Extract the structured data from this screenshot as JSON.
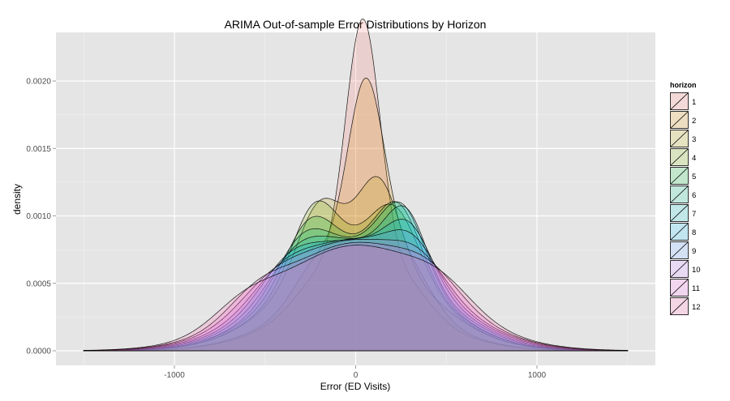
{
  "chart_data": {
    "type": "area",
    "subtype": "density",
    "title": "ARIMA Out-of-sample Error Distributions by Horizon",
    "xlabel": "Error (ED Visits)",
    "ylabel": "density",
    "xlim": [
      -1500,
      1500
    ],
    "ylim": [
      0,
      0.0022
    ],
    "x_ticks": [
      -1000,
      0,
      1000
    ],
    "x_tick_labels": [
      "-1000",
      "0",
      "1000"
    ],
    "y_ticks": [
      0,
      0.0005,
      0.001,
      0.0015,
      0.002
    ],
    "y_tick_labels": [
      "0.0000",
      "0.0005",
      "0.0010",
      "0.0015",
      "0.0020"
    ],
    "grid": true,
    "background": "#e5e5e5",
    "fill_opacity": 0.2,
    "legend": {
      "title": "horizon",
      "position": "right",
      "labels": [
        "1",
        "2",
        "3",
        "4",
        "5",
        "6",
        "7",
        "8",
        "9",
        "10",
        "11",
        "12"
      ]
    },
    "series": [
      {
        "name": "1",
        "color": "#F8766D",
        "components": [
          {
            "mu": 40,
            "sd": 95,
            "w": 0.46
          },
          {
            "mu": -180,
            "sd": 140,
            "w": 0.08
          },
          {
            "mu": 260,
            "sd": 140,
            "w": 0.08
          },
          {
            "mu": 0,
            "sd": 380,
            "w": 0.38
          }
        ]
      },
      {
        "name": "2",
        "color": "#DE8C00",
        "components": [
          {
            "mu": 55,
            "sd": 100,
            "w": 0.36
          },
          {
            "mu": -200,
            "sd": 130,
            "w": 0.1
          },
          {
            "mu": 270,
            "sd": 140,
            "w": 0.12
          },
          {
            "mu": 0,
            "sd": 380,
            "w": 0.42
          }
        ]
      },
      {
        "name": "3",
        "color": "#B79F00",
        "components": [
          {
            "mu": 130,
            "sd": 110,
            "w": 0.16
          },
          {
            "mu": -200,
            "sd": 120,
            "w": 0.14
          },
          {
            "mu": 0,
            "sd": 380,
            "w": 0.7
          }
        ]
      },
      {
        "name": "4",
        "color": "#7CAE00",
        "components": [
          {
            "mu": -230,
            "sd": 120,
            "w": 0.14
          },
          {
            "mu": 220,
            "sd": 130,
            "w": 0.14
          },
          {
            "mu": 0,
            "sd": 380,
            "w": 0.72
          }
        ]
      },
      {
        "name": "5",
        "color": "#00BA38",
        "components": [
          {
            "mu": -260,
            "sd": 130,
            "w": 0.12
          },
          {
            "mu": 240,
            "sd": 120,
            "w": 0.14
          },
          {
            "mu": 0,
            "sd": 390,
            "w": 0.74
          }
        ]
      },
      {
        "name": "6",
        "color": "#00C08B",
        "components": [
          {
            "mu": -300,
            "sd": 140,
            "w": 0.1
          },
          {
            "mu": 260,
            "sd": 120,
            "w": 0.14
          },
          {
            "mu": 0,
            "sd": 390,
            "w": 0.76
          }
        ]
      },
      {
        "name": "7",
        "color": "#00BFC4",
        "components": [
          {
            "mu": -330,
            "sd": 150,
            "w": 0.08
          },
          {
            "mu": 280,
            "sd": 110,
            "w": 0.12
          },
          {
            "mu": 0,
            "sd": 400,
            "w": 0.8
          }
        ]
      },
      {
        "name": "8",
        "color": "#00B4F0",
        "components": [
          {
            "mu": -380,
            "sd": 150,
            "w": 0.07
          },
          {
            "mu": 300,
            "sd": 120,
            "w": 0.1
          },
          {
            "mu": 0,
            "sd": 410,
            "w": 0.83
          }
        ]
      },
      {
        "name": "9",
        "color": "#619CFF",
        "components": [
          {
            "mu": -420,
            "sd": 160,
            "w": 0.06
          },
          {
            "mu": 320,
            "sd": 130,
            "w": 0.08
          },
          {
            "mu": 0,
            "sd": 420,
            "w": 0.86
          }
        ]
      },
      {
        "name": "10",
        "color": "#C77CFF",
        "components": [
          {
            "mu": -480,
            "sd": 170,
            "w": 0.06
          },
          {
            "mu": 360,
            "sd": 140,
            "w": 0.06
          },
          {
            "mu": 0,
            "sd": 430,
            "w": 0.88
          }
        ]
      },
      {
        "name": "11",
        "color": "#F564E3",
        "components": [
          {
            "mu": -550,
            "sd": 160,
            "w": 0.06
          },
          {
            "mu": 420,
            "sd": 160,
            "w": 0.06
          },
          {
            "mu": 0,
            "sd": 440,
            "w": 0.88
          }
        ]
      },
      {
        "name": "12",
        "color": "#FF64B0",
        "components": [
          {
            "mu": -620,
            "sd": 170,
            "w": 0.06
          },
          {
            "mu": 480,
            "sd": 170,
            "w": 0.06
          },
          {
            "mu": 0,
            "sd": 450,
            "w": 0.88
          }
        ]
      }
    ]
  }
}
